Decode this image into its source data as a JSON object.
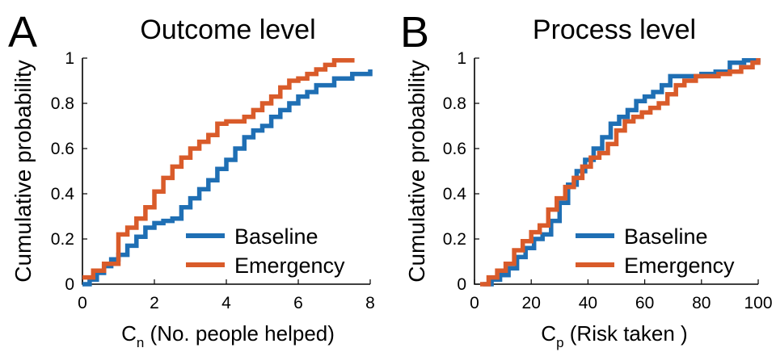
{
  "colors": {
    "baseline": "#1f6fb4",
    "emergency": "#d95b2a"
  },
  "chart_data": [
    {
      "type": "line",
      "step": true,
      "panel_letter": "A",
      "title": "Outcome level",
      "xlabel_main": "C",
      "xlabel_sub": "n",
      "xlabel_rest": " (No. people helped)",
      "ylabel": "Cumulative probability",
      "xlim": [
        0,
        8
      ],
      "ylim": [
        0,
        1
      ],
      "xticks": [
        0,
        2,
        4,
        6,
        8
      ],
      "yticks": [
        0,
        0.2,
        0.4,
        0.6,
        0.8,
        1
      ],
      "grid": false,
      "legend_position": "lower-right",
      "series": [
        {
          "name": "Baseline",
          "color": "#1f6fb4",
          "x": [
            0,
            0.2,
            0.4,
            0.6,
            0.8,
            1.0,
            1.25,
            1.5,
            1.75,
            2.0,
            2.25,
            2.5,
            2.75,
            3.0,
            3.25,
            3.5,
            3.75,
            4.0,
            4.25,
            4.5,
            4.75,
            5.0,
            5.25,
            5.5,
            5.75,
            6.0,
            6.25,
            6.5,
            7.0,
            7.5,
            8.0
          ],
          "y": [
            0.0,
            0.02,
            0.05,
            0.08,
            0.11,
            0.13,
            0.17,
            0.21,
            0.25,
            0.27,
            0.28,
            0.29,
            0.34,
            0.38,
            0.42,
            0.46,
            0.51,
            0.55,
            0.6,
            0.65,
            0.68,
            0.7,
            0.74,
            0.77,
            0.8,
            0.83,
            0.85,
            0.88,
            0.91,
            0.93,
            0.95
          ]
        },
        {
          "name": "Emergency",
          "color": "#d95b2a",
          "x": [
            0,
            0.3,
            0.6,
            1.0,
            1.25,
            1.5,
            1.75,
            2.0,
            2.25,
            2.5,
            2.75,
            3.0,
            3.25,
            3.5,
            3.75,
            4.0,
            4.5,
            4.75,
            5.0,
            5.25,
            5.5,
            5.75,
            6.0,
            6.25,
            6.5,
            6.75,
            7.0,
            7.5
          ],
          "y": [
            0.03,
            0.06,
            0.09,
            0.22,
            0.25,
            0.29,
            0.34,
            0.41,
            0.47,
            0.52,
            0.56,
            0.6,
            0.63,
            0.66,
            0.71,
            0.72,
            0.74,
            0.77,
            0.8,
            0.83,
            0.87,
            0.9,
            0.91,
            0.93,
            0.95,
            0.97,
            0.99,
            1.0
          ]
        }
      ]
    },
    {
      "type": "line",
      "step": true,
      "panel_letter": "B",
      "title": "Process level",
      "xlabel_main": "C",
      "xlabel_sub": "p",
      "xlabel_rest": " (Risk taken )",
      "ylabel": "Cumulative probability",
      "xlim": [
        0,
        100
      ],
      "ylim": [
        0,
        1
      ],
      "xticks": [
        0,
        20,
        40,
        60,
        80,
        100
      ],
      "yticks": [
        0,
        0.2,
        0.4,
        0.6,
        0.8,
        1
      ],
      "grid": false,
      "legend_position": "lower-right",
      "series": [
        {
          "name": "Baseline",
          "color": "#1f6fb4",
          "x": [
            3,
            6,
            9,
            12,
            15,
            18,
            21,
            24,
            27,
            30,
            33,
            36,
            39,
            42,
            45,
            48,
            51,
            54,
            57,
            60,
            63,
            66,
            69,
            72,
            75,
            80,
            85,
            90,
            95,
            100
          ],
          "y": [
            0.0,
            0.02,
            0.04,
            0.07,
            0.12,
            0.16,
            0.2,
            0.22,
            0.28,
            0.36,
            0.44,
            0.5,
            0.55,
            0.6,
            0.65,
            0.71,
            0.74,
            0.77,
            0.81,
            0.83,
            0.85,
            0.88,
            0.92,
            0.92,
            0.92,
            0.93,
            0.94,
            0.98,
            0.99,
            1.0
          ]
        },
        {
          "name": "Emergency",
          "color": "#d95b2a",
          "x": [
            2,
            5,
            8,
            11,
            14,
            17,
            20,
            23,
            26,
            29,
            32,
            35,
            38,
            41,
            44,
            47,
            50,
            53,
            56,
            59,
            62,
            65,
            68,
            71,
            74,
            78,
            82,
            86,
            90,
            94,
            98,
            100
          ],
          "y": [
            0.0,
            0.03,
            0.06,
            0.09,
            0.15,
            0.19,
            0.23,
            0.26,
            0.33,
            0.38,
            0.43,
            0.47,
            0.52,
            0.56,
            0.58,
            0.62,
            0.68,
            0.72,
            0.74,
            0.76,
            0.78,
            0.8,
            0.84,
            0.88,
            0.9,
            0.92,
            0.92,
            0.93,
            0.94,
            0.96,
            0.98,
            1.0
          ]
        }
      ]
    }
  ]
}
